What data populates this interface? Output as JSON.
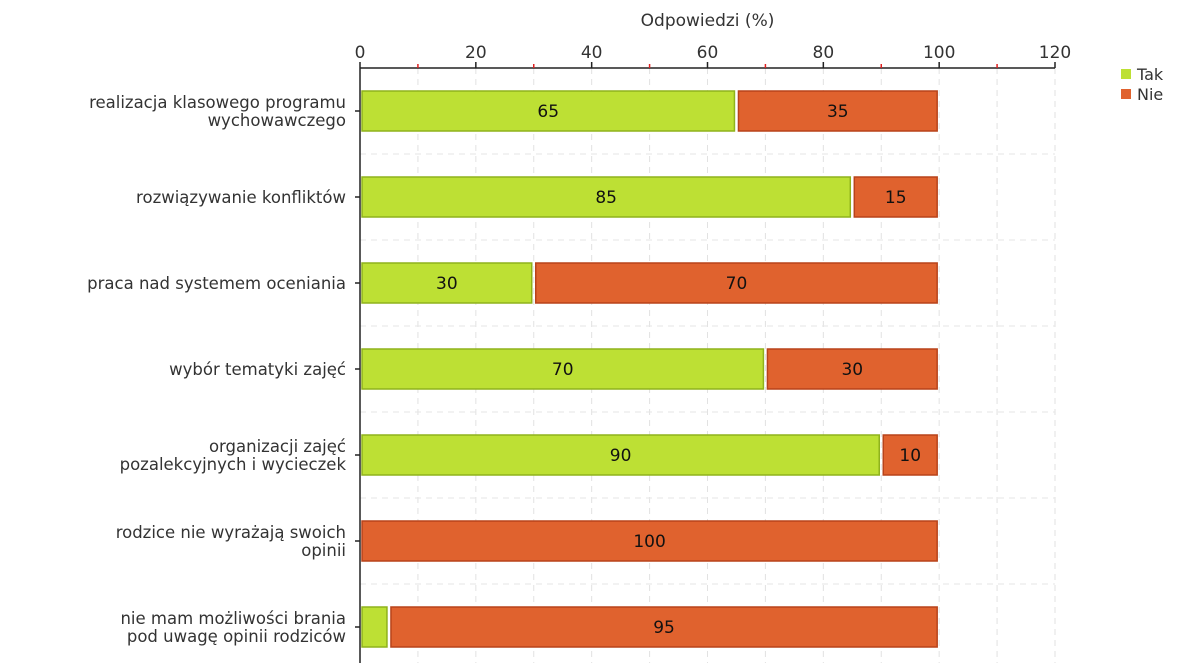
{
  "chart_data": {
    "type": "bar",
    "orientation": "horizontal",
    "stacked": true,
    "xlabel": "Odpowiedzi (%)",
    "ylabel": "",
    "xlim": [
      0,
      120
    ],
    "x_ticks": [
      "0",
      "20",
      "40",
      "60",
      "80",
      "100",
      "120"
    ],
    "grid": true,
    "legend_position": "top-right",
    "categories": [
      [
        "realizacja klasowego programu",
        "wychowawczego"
      ],
      [
        "rozwiązywanie konfliktów"
      ],
      [
        "praca nad systemem oceniania"
      ],
      [
        "wybór tematyki zajęć"
      ],
      [
        "organizacji zajęć",
        "pozalekcyjnych i wycieczek"
      ],
      [
        "rodzice nie wyrażają swoich",
        "opinii"
      ],
      [
        "nie mam możliwości brania",
        "pod uwagę opinii rodziców"
      ]
    ],
    "series": [
      {
        "name": "Tak",
        "color": "#bde034",
        "stroke": "#8fb21c",
        "values": [
          65,
          85,
          30,
          70,
          90,
          0,
          5
        ],
        "labels": [
          "65",
          "85",
          "30",
          "70",
          "90",
          "",
          ""
        ]
      },
      {
        "name": "Nie",
        "color": "#e0622e",
        "stroke": "#b8431a",
        "values": [
          35,
          15,
          70,
          30,
          10,
          100,
          95
        ],
        "labels": [
          "35",
          "15",
          "70",
          "30",
          "10",
          "100",
          "95"
        ]
      }
    ]
  }
}
